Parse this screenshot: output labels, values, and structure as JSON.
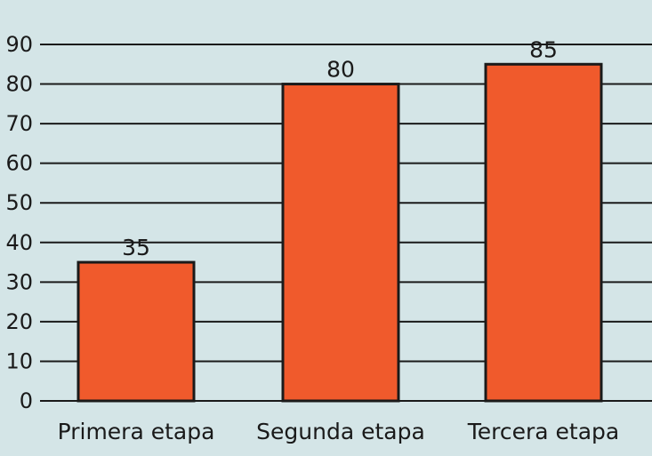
{
  "colors": {
    "background": "#d4e5e7",
    "bar": "#f05a2c",
    "line": "#1a1a1a"
  },
  "chart_data": {
    "type": "bar",
    "categories": [
      "Primera etapa",
      "Segunda etapa",
      "Tercera etapa"
    ],
    "values": [
      35,
      80,
      85
    ],
    "data_labels": [
      "35",
      "80",
      "85"
    ],
    "yticks": [
      0,
      10,
      20,
      30,
      40,
      50,
      60,
      70,
      80,
      90
    ],
    "ylim": [
      0,
      90
    ],
    "grid": true,
    "legend": "none"
  }
}
